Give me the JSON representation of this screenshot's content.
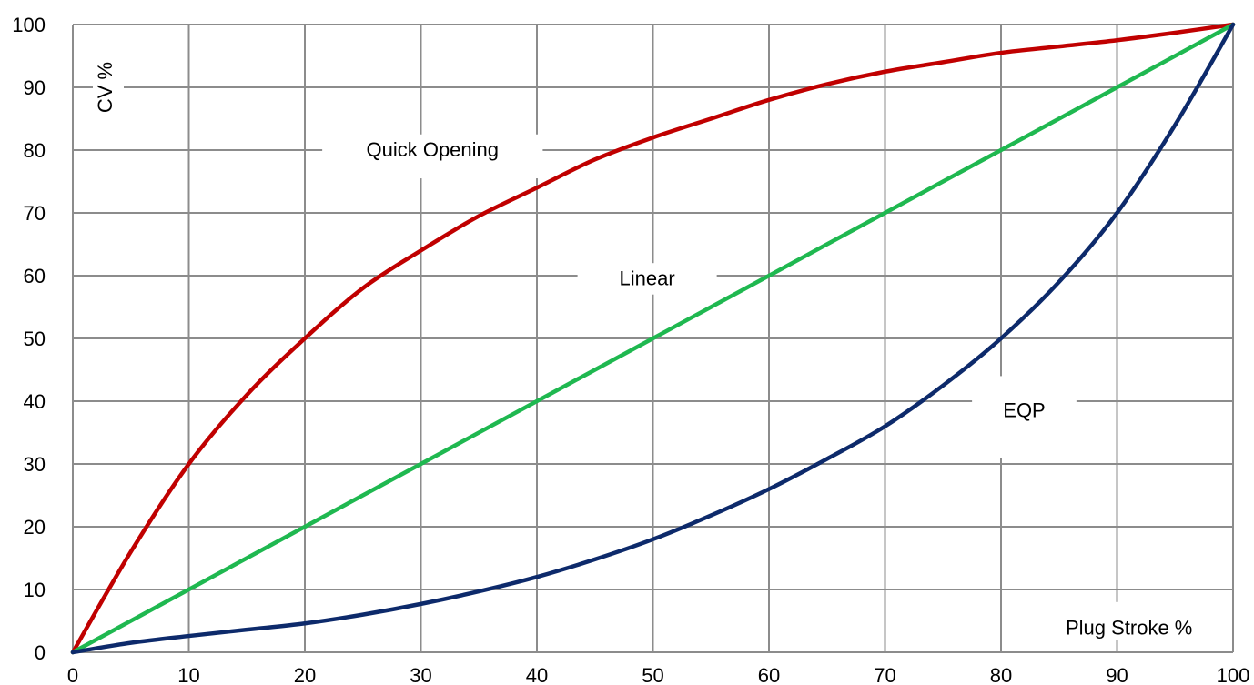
{
  "chart_data": {
    "type": "line",
    "xlabel": "Plug Stroke %",
    "ylabel": "CV %",
    "xlim": [
      0,
      100
    ],
    "ylim": [
      0,
      100
    ],
    "xticks": [
      0,
      10,
      20,
      30,
      40,
      50,
      60,
      70,
      80,
      90,
      100
    ],
    "yticks": [
      0,
      10,
      20,
      30,
      40,
      50,
      60,
      70,
      80,
      90,
      100
    ],
    "grid": true,
    "series": [
      {
        "name": "Quick Opening",
        "color": "#c00000",
        "x": [
          0,
          5,
          10,
          15,
          20,
          25,
          30,
          35,
          40,
          45,
          50,
          55,
          60,
          65,
          70,
          75,
          80,
          85,
          90,
          95,
          100
        ],
        "y": [
          0,
          16,
          30,
          41,
          50,
          58,
          64,
          69.5,
          74,
          78.5,
          82,
          85,
          88,
          90.5,
          92.5,
          94,
          95.5,
          96.5,
          97.5,
          98.7,
          100
        ]
      },
      {
        "name": "Linear",
        "color": "#1fb850",
        "x": [
          0,
          100
        ],
        "y": [
          0,
          100
        ]
      },
      {
        "name": "EQP",
        "color": "#0d2a6b",
        "x": [
          0,
          5,
          10,
          15,
          20,
          25,
          30,
          35,
          40,
          45,
          50,
          55,
          60,
          65,
          70,
          75,
          80,
          85,
          90,
          95,
          100
        ],
        "y": [
          0,
          1.5,
          2.6,
          3.6,
          4.6,
          6,
          7.7,
          9.7,
          12,
          14.8,
          18,
          21.8,
          26,
          30.8,
          36,
          42.5,
          50,
          59,
          70,
          84,
          100
        ]
      }
    ]
  }
}
